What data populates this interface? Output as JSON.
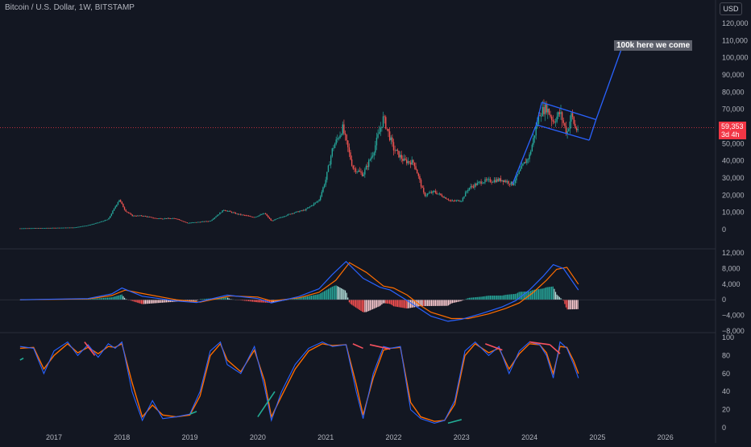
{
  "header": {
    "title": "Bitcoin / U.S. Dollar, 1W, BITSTAMP",
    "currency_button": "USD"
  },
  "price_tag": {
    "price": "59,353",
    "countdown": "3d 4h"
  },
  "annotation": "100k here we come",
  "colors": {
    "background": "#131722",
    "up": "#26a69a",
    "down": "#ef5350",
    "drawing": "#2962ff",
    "macd_line": "#2962ff",
    "signal_line": "#ff6d00",
    "stoch_k": "#2962ff",
    "stoch_d": "#ff6d00",
    "bearish_div": "#f7525f",
    "bullish_div": "#22ab94",
    "axis_text": "#b2b5be",
    "price_line": "#f23645"
  },
  "chart_data": [
    {
      "type": "candlestick",
      "title": "Bitcoin / U.S. Dollar, 1W, BITSTAMP",
      "x_ticks": [
        "2017",
        "2018",
        "2019",
        "2020",
        "2021",
        "2022",
        "2023",
        "2024",
        "2025",
        "2026"
      ],
      "y_ticks": [
        "0",
        "10,000",
        "20,000",
        "30,000",
        "40,000",
        "50,000",
        "60,000",
        "70,000",
        "80,000",
        "90,000",
        "100,000",
        "110,000",
        "120,000"
      ],
      "ylim": [
        0,
        120000
      ],
      "last_price": 59353,
      "price_path": [
        [
          2016.5,
          700
        ],
        [
          2017.0,
          1000
        ],
        [
          2017.3,
          1200
        ],
        [
          2017.5,
          2500
        ],
        [
          2017.65,
          4000
        ],
        [
          2017.8,
          6000
        ],
        [
          2017.96,
          17500
        ],
        [
          2018.05,
          11000
        ],
        [
          2018.15,
          8000
        ],
        [
          2018.3,
          8000
        ],
        [
          2018.5,
          6500
        ],
        [
          2018.8,
          6400
        ],
        [
          2018.96,
          3800
        ],
        [
          2019.3,
          5000
        ],
        [
          2019.5,
          11500
        ],
        [
          2019.7,
          9000
        ],
        [
          2019.95,
          7200
        ],
        [
          2020.1,
          9500
        ],
        [
          2020.2,
          5000
        ],
        [
          2020.5,
          9500
        ],
        [
          2020.7,
          11500
        ],
        [
          2020.9,
          17000
        ],
        [
          2021.0,
          29000
        ],
        [
          2021.1,
          47000
        ],
        [
          2021.25,
          59000
        ],
        [
          2021.4,
          36000
        ],
        [
          2021.55,
          32000
        ],
        [
          2021.7,
          45000
        ],
        [
          2021.85,
          65000
        ],
        [
          2022.0,
          47000
        ],
        [
          2022.15,
          40000
        ],
        [
          2022.3,
          39000
        ],
        [
          2022.45,
          20000
        ],
        [
          2022.6,
          22000
        ],
        [
          2022.85,
          16500
        ],
        [
          2023.0,
          17000
        ],
        [
          2023.1,
          24000
        ],
        [
          2023.3,
          28000
        ],
        [
          2023.6,
          29000
        ],
        [
          2023.75,
          26500
        ],
        [
          2023.9,
          37000
        ],
        [
          2024.0,
          43000
        ],
        [
          2024.15,
          68000
        ],
        [
          2024.25,
          71000
        ],
        [
          2024.35,
          63000
        ],
        [
          2024.45,
          68000
        ],
        [
          2024.55,
          56000
        ],
        [
          2024.62,
          67000
        ],
        [
          2024.68,
          58000
        ],
        [
          2024.72,
          59353
        ]
      ],
      "drawings": {
        "channel": {
          "upper": [
            [
              2024.18,
              74000
            ],
            [
              2024.98,
              64000
            ]
          ],
          "lower": [
            [
              2024.1,
              61000
            ],
            [
              2024.88,
              52000
            ]
          ]
        },
        "entry_line": [
          [
            2023.75,
            26500
          ],
          [
            2024.1,
            61000
          ]
        ],
        "target_line": [
          [
            2024.98,
            64000
          ],
          [
            2025.38,
            108000
          ]
        ],
        "label": "100k here we come"
      }
    },
    {
      "type": "line",
      "indicator": "MACD",
      "y_ticks": [
        "−8,000",
        "−4,000",
        "0",
        "4,000",
        "8,000",
        "12,000"
      ],
      "ylim": [
        -8000,
        12000
      ],
      "series": [
        {
          "role": "macd",
          "x": [
            2016.5,
            2017.5,
            2017.85,
            2018.0,
            2018.3,
            2018.8,
            2019.1,
            2019.55,
            2020.0,
            2020.2,
            2020.6,
            2020.9,
            2021.1,
            2021.3,
            2021.55,
            2021.8,
            2021.95,
            2022.2,
            2022.4,
            2022.55,
            2022.8,
            2023.0,
            2023.3,
            2023.6,
            2023.8,
            2024.0,
            2024.2,
            2024.35,
            2024.5,
            2024.72
          ],
          "values": [
            0,
            300,
            1500,
            3000,
            900,
            -300,
            -700,
            1200,
            300,
            -800,
            800,
            2800,
            6500,
            9800,
            5500,
            3200,
            2500,
            -200,
            -2500,
            -4200,
            -5500,
            -5000,
            -3500,
            -1800,
            -200,
            2500,
            6000,
            9000,
            8000,
            2500
          ]
        },
        {
          "role": "signal",
          "x": [
            2016.5,
            2017.5,
            2017.85,
            2018.05,
            2018.3,
            2018.8,
            2019.15,
            2019.6,
            2020.0,
            2020.2,
            2020.6,
            2020.9,
            2021.15,
            2021.35,
            2021.6,
            2021.85,
            2022.0,
            2022.2,
            2022.4,
            2022.55,
            2022.85,
            2023.1,
            2023.4,
            2023.65,
            2023.85,
            2024.05,
            2024.25,
            2024.4,
            2024.55,
            2024.72
          ],
          "values": [
            0,
            200,
            1100,
            2500,
            1600,
            0,
            -600,
            1000,
            700,
            -300,
            500,
            1900,
            5000,
            9500,
            7000,
            3500,
            3000,
            1200,
            -1500,
            -3200,
            -4800,
            -4800,
            -3600,
            -2200,
            -800,
            1800,
            5000,
            7800,
            8300,
            4000
          ]
        }
      ],
      "histogram_colors": [
        "#26a69a",
        "#b2dfdb",
        "#ff5252",
        "#ffcdd2"
      ]
    },
    {
      "type": "line",
      "indicator": "Stochastic RSI",
      "y_ticks": [
        "0",
        "20",
        "40",
        "60",
        "80",
        "100"
      ],
      "ylim": [
        0,
        100
      ],
      "series": [
        {
          "role": "k",
          "x": [
            2016.5,
            2016.7,
            2016.85,
            2017.0,
            2017.2,
            2017.35,
            2017.5,
            2017.65,
            2017.8,
            2017.9,
            2018.0,
            2018.15,
            2018.3,
            2018.45,
            2018.6,
            2018.8,
            2019.0,
            2019.15,
            2019.3,
            2019.45,
            2019.55,
            2019.75,
            2019.95,
            2020.1,
            2020.2,
            2020.35,
            2020.55,
            2020.75,
            2020.95,
            2021.1,
            2021.3,
            2021.45,
            2021.55,
            2021.7,
            2021.85,
            2021.95,
            2022.1,
            2022.25,
            2022.4,
            2022.6,
            2022.75,
            2022.9,
            2023.05,
            2023.2,
            2023.4,
            2023.55,
            2023.7,
            2023.85,
            2024.0,
            2024.15,
            2024.25,
            2024.35,
            2024.45,
            2024.55,
            2024.65,
            2024.72
          ],
          "values": [
            90,
            88,
            60,
            85,
            95,
            80,
            92,
            78,
            93,
            88,
            95,
            40,
            8,
            30,
            10,
            12,
            15,
            40,
            85,
            95,
            70,
            60,
            90,
            45,
            8,
            40,
            70,
            88,
            95,
            90,
            92,
            40,
            10,
            60,
            90,
            88,
            90,
            20,
            10,
            5,
            8,
            30,
            85,
            95,
            80,
            90,
            60,
            85,
            95,
            92,
            80,
            55,
            95,
            88,
            70,
            55
          ]
        },
        {
          "role": "d",
          "x": [
            2016.5,
            2016.7,
            2016.85,
            2017.0,
            2017.2,
            2017.35,
            2017.5,
            2017.65,
            2017.8,
            2017.9,
            2018.0,
            2018.15,
            2018.3,
            2018.45,
            2018.6,
            2018.8,
            2019.0,
            2019.15,
            2019.3,
            2019.45,
            2019.55,
            2019.75,
            2019.95,
            2020.1,
            2020.2,
            2020.35,
            2020.55,
            2020.75,
            2020.95,
            2021.1,
            2021.3,
            2021.45,
            2021.55,
            2021.7,
            2021.85,
            2021.95,
            2022.1,
            2022.25,
            2022.4,
            2022.6,
            2022.75,
            2022.9,
            2023.05,
            2023.2,
            2023.4,
            2023.55,
            2023.7,
            2023.85,
            2024.0,
            2024.15,
            2024.25,
            2024.35,
            2024.45,
            2024.55,
            2024.65,
            2024.72
          ],
          "values": [
            88,
            89,
            65,
            80,
            93,
            83,
            89,
            82,
            90,
            89,
            93,
            50,
            12,
            25,
            14,
            12,
            14,
            35,
            80,
            93,
            75,
            62,
            86,
            52,
            12,
            35,
            65,
            85,
            93,
            91,
            92,
            48,
            14,
            55,
            86,
            88,
            89,
            28,
            12,
            7,
            8,
            26,
            80,
            93,
            83,
            88,
            65,
            82,
            93,
            92,
            83,
            60,
            90,
            89,
            74,
            60
          ]
        }
      ],
      "divergences": {
        "bearish": [
          [
            [
              2017.45,
              95
            ],
            [
              2017.6,
              80
            ]
          ],
          [
            [
              2021.4,
              93
            ],
            [
              2021.55,
              88
            ]
          ],
          [
            [
              2021.65,
              92
            ],
            [
              2021.95,
              87
            ]
          ],
          [
            [
              2023.35,
              93
            ],
            [
              2023.6,
              86
            ]
          ],
          [
            [
              2024.0,
              95
            ],
            [
              2024.3,
              92
            ]
          ],
          [
            [
              2024.3,
              92
            ],
            [
              2024.45,
              82
            ]
          ]
        ],
        "bullish": [
          [
            [
              2016.5,
              75
            ],
            [
              2016.55,
              77
            ]
          ],
          [
            [
              2019.0,
              15
            ],
            [
              2019.1,
              18
            ]
          ],
          [
            [
              2020.0,
              12
            ],
            [
              2020.25,
              40
            ]
          ],
          [
            [
              2022.8,
              5
            ],
            [
              2023.0,
              9
            ]
          ]
        ]
      }
    }
  ]
}
